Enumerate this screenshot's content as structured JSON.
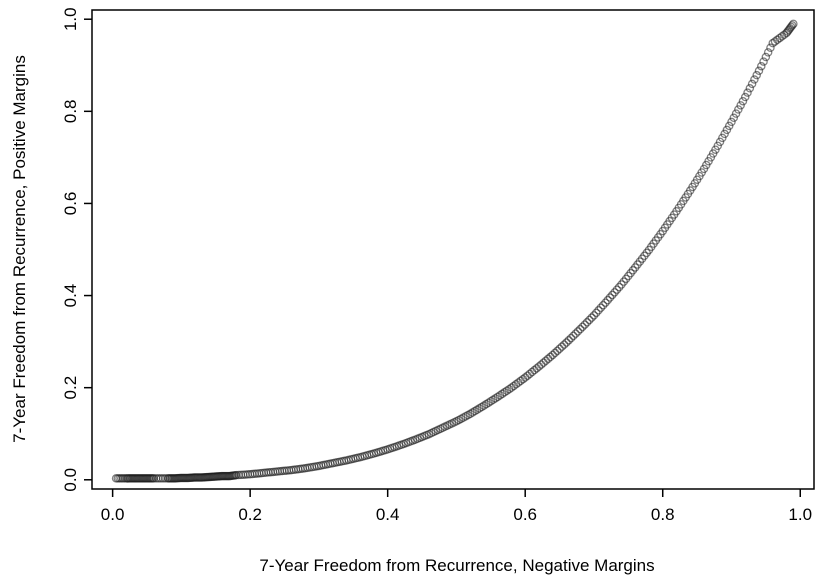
{
  "chart_data": {
    "type": "scatter",
    "title": "",
    "xlabel": "7-Year Freedom from Recurrence, Negative Margins",
    "ylabel": "7-Year Freedom from Recurrence, Positive Margins",
    "xlim": [
      -0.03,
      1.02
    ],
    "ylim": [
      -0.02,
      1.02
    ],
    "xticks": [
      0.0,
      0.2,
      0.4,
      0.6,
      0.8,
      1.0
    ],
    "yticks": [
      0.0,
      0.2,
      0.4,
      0.6,
      0.8,
      1.0
    ],
    "xtick_labels": [
      "0.0",
      "0.2",
      "0.4",
      "0.6",
      "0.8",
      "1.0"
    ],
    "ytick_labels": [
      "0.0",
      "0.2",
      "0.4",
      "0.6",
      "0.8",
      "1.0"
    ],
    "grid": false,
    "marker": "open-circle",
    "series": [
      {
        "x": [
          0.005,
          0.02,
          0.03,
          0.04,
          0.05,
          0.06,
          0.08,
          0.09,
          0.1,
          0.11,
          0.12,
          0.13,
          0.14,
          0.15,
          0.16,
          0.17,
          0.18,
          0.2,
          0.22,
          0.24,
          0.26,
          0.28,
          0.3,
          0.32,
          0.34,
          0.36,
          0.38,
          0.4,
          0.42,
          0.44,
          0.46,
          0.48,
          0.5,
          0.52,
          0.54,
          0.56,
          0.58,
          0.6,
          0.62,
          0.64,
          0.66,
          0.68,
          0.7,
          0.72,
          0.74,
          0.76,
          0.78,
          0.8,
          0.82,
          0.84,
          0.86,
          0.88,
          0.9,
          0.92,
          0.94,
          0.96,
          0.98,
          0.99
        ],
        "y": [
          0.003,
          0.003,
          0.003,
          0.003,
          0.003,
          0.003,
          0.003,
          0.003,
          0.004,
          0.004,
          0.005,
          0.005,
          0.006,
          0.007,
          0.008,
          0.008,
          0.01,
          0.012,
          0.015,
          0.018,
          0.021,
          0.025,
          0.03,
          0.036,
          0.042,
          0.049,
          0.057,
          0.066,
          0.076,
          0.087,
          0.099,
          0.113,
          0.127,
          0.143,
          0.161,
          0.18,
          0.2,
          0.222,
          0.246,
          0.271,
          0.298,
          0.327,
          0.357,
          0.39,
          0.424,
          0.461,
          0.499,
          0.54,
          0.583,
          0.628,
          0.675,
          0.725,
          0.777,
          0.831,
          0.888,
          0.948,
          0.97,
          0.99
        ]
      }
    ]
  }
}
